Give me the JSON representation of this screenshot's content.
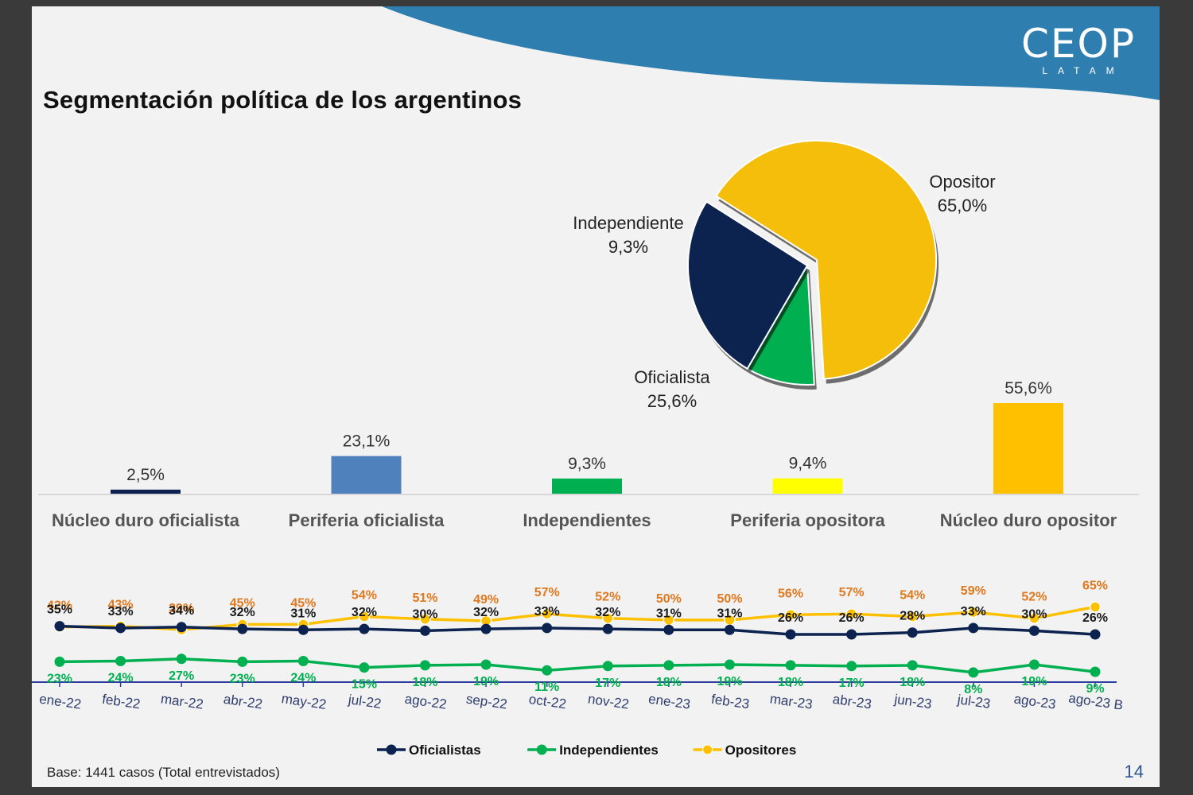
{
  "header": {
    "title": "Segmentación política de los argentinos",
    "logo_text": "CEOP",
    "logo_sub": "LATAM"
  },
  "footer": {
    "base_text": "Base: 1441 casos (Total entrevistados)",
    "page_number": "14"
  },
  "colors": {
    "oficialistas": "#0c2350",
    "independientes": "#00b050",
    "opositores": "#ffc000",
    "periferia_oficialista": "#4f81bd",
    "periferia_opositora": "#ffff00",
    "wave": "#2e7fb0"
  },
  "chart_data": [
    {
      "type": "pie",
      "labels": [
        "Opositor",
        "Independiente",
        "Oficialista"
      ],
      "values": [
        65.0,
        9.3,
        25.6
      ],
      "value_labels": [
        "65,0%",
        "9,3%",
        "25,6%"
      ],
      "colors": [
        "#f5be0a",
        "#00b050",
        "#0c2350"
      ]
    },
    {
      "type": "bar",
      "categories": [
        "Núcleo duro oficialista",
        "Periferia oficialista",
        "Independientes",
        "Periferia opositora",
        "Núcleo duro opositor"
      ],
      "values": [
        2.5,
        23.1,
        9.3,
        9.4,
        55.6
      ],
      "value_labels": [
        "2,5%",
        "23,1%",
        "9,3%",
        "9,4%",
        "55,6%"
      ],
      "colors": [
        "#0c2350",
        "#4f81bd",
        "#00b050",
        "#ffff00",
        "#ffc000"
      ]
    },
    {
      "type": "line",
      "x": [
        "ene-22",
        "feb-22",
        "mar-22",
        "abr-22",
        "may-22",
        "jul-22",
        "ago-22",
        "sep-22",
        "oct-22",
        "nov-22",
        "ene-23",
        "feb-23",
        "mar-23",
        "abr-23",
        "jun-23",
        "jul-23",
        "ago-23",
        "ago-23 B"
      ],
      "series": [
        {
          "name": "Oficialistas",
          "values": [
            35,
            33,
            34,
            32,
            31,
            32,
            30,
            32,
            33,
            32,
            31,
            31,
            26,
            26,
            28,
            33,
            30,
            26
          ],
          "color": "#0c2350"
        },
        {
          "name": "Independientes",
          "values": [
            23,
            24,
            27,
            23,
            24,
            15,
            18,
            19,
            11,
            17,
            18,
            19,
            18,
            17,
            18,
            8,
            19,
            9
          ],
          "color": "#00b050"
        },
        {
          "name": "Opositores",
          "values": [
            42,
            43,
            39,
            45,
            45,
            54,
            51,
            49,
            57,
            52,
            50,
            50,
            56,
            57,
            54,
            59,
            52,
            65
          ],
          "color": "#ffc000"
        }
      ],
      "legend_position": "bottom"
    }
  ]
}
